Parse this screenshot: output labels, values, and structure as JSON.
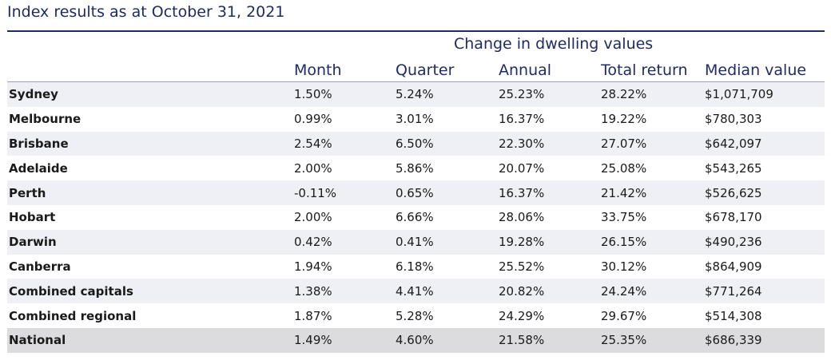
{
  "title": "Index results as at October 31, 2021",
  "group_heading": "Change in dwelling values",
  "columns": [
    "Month",
    "Quarter",
    "Annual",
    "Total return",
    "Median value"
  ],
  "rows": [
    {
      "name": "Sydney",
      "month": "1.50%",
      "quarter": "5.24%",
      "annual": "25.23%",
      "total_return": "28.22%",
      "median": "$1,071,709"
    },
    {
      "name": "Melbourne",
      "month": "0.99%",
      "quarter": "3.01%",
      "annual": "16.37%",
      "total_return": "19.22%",
      "median": "$780,303"
    },
    {
      "name": "Brisbane",
      "month": "2.54%",
      "quarter": "6.50%",
      "annual": "22.30%",
      "total_return": "27.07%",
      "median": "$642,097"
    },
    {
      "name": "Adelaide",
      "month": "2.00%",
      "quarter": "5.86%",
      "annual": "20.07%",
      "total_return": "25.08%",
      "median": "$543,265"
    },
    {
      "name": "Perth",
      "month": "-0.11%",
      "quarter": "0.65%",
      "annual": "16.37%",
      "total_return": "21.42%",
      "median": "$526,625"
    },
    {
      "name": "Hobart",
      "month": "2.00%",
      "quarter": "6.66%",
      "annual": "28.06%",
      "total_return": "33.75%",
      "median": "$678,170"
    },
    {
      "name": "Darwin",
      "month": "0.42%",
      "quarter": "0.41%",
      "annual": "19.28%",
      "total_return": "26.15%",
      "median": "$490,236"
    },
    {
      "name": "Canberra",
      "month": "1.94%",
      "quarter": "6.18%",
      "annual": "25.52%",
      "total_return": "30.12%",
      "median": "$864,909"
    },
    {
      "name": "Combined capitals",
      "month": "1.38%",
      "quarter": "4.41%",
      "annual": "20.82%",
      "total_return": "24.24%",
      "median": "$771,264"
    },
    {
      "name": "Combined regional",
      "month": "1.87%",
      "quarter": "5.28%",
      "annual": "24.29%",
      "total_return": "29.67%",
      "median": "$514,308"
    },
    {
      "name": "National",
      "month": "1.49%",
      "quarter": "4.60%",
      "annual": "21.58%",
      "total_return": "25.35%",
      "median": "$686,339"
    }
  ]
}
